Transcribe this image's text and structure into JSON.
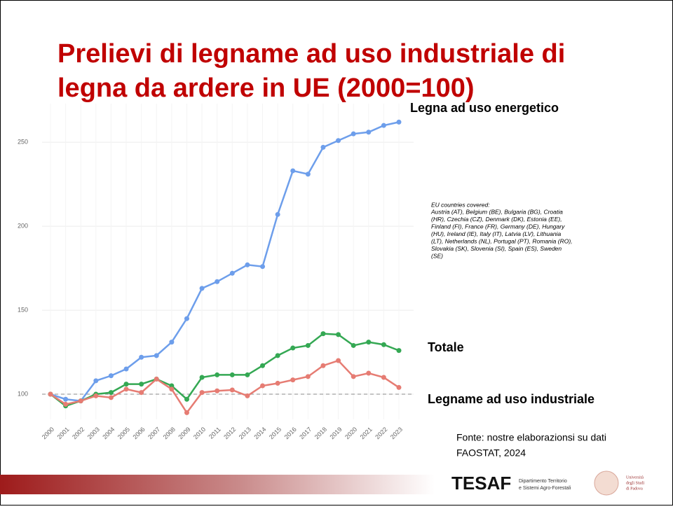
{
  "chart_data": {
    "type": "line",
    "title": [
      "Prelievi di legname ad uso industriale di",
      "legna da ardere in UE (2000=100)"
    ],
    "categories": [
      "2000",
      "2001",
      "2002",
      "2003",
      "2004",
      "2005",
      "2006",
      "2007",
      "2008",
      "2009",
      "2010",
      "2011",
      "2012",
      "2013",
      "2014",
      "2015",
      "2016",
      "2017",
      "2018",
      "2019",
      "2020",
      "2021",
      "2022",
      "2023"
    ],
    "series": [
      {
        "name": "Legna ad uso energetico",
        "color": "#6d9eeb",
        "values": [
          100,
          97,
          96,
          108,
          111,
          115,
          122,
          123,
          131,
          145,
          163,
          167,
          172,
          177,
          176,
          207,
          233,
          231,
          247,
          251,
          255,
          256,
          260,
          262
        ]
      },
      {
        "name": "Totale",
        "color": "#34a853",
        "values": [
          100,
          93,
          96,
          100,
          101,
          106,
          106,
          109,
          105,
          97,
          110,
          111.5,
          111.5,
          111.5,
          117,
          123,
          127.5,
          129,
          136,
          135.5,
          129,
          131,
          129.5,
          126
        ]
      },
      {
        "name": "Legname ad uso industriale",
        "color": "#e67c73",
        "values": [
          100,
          94,
          96,
          99,
          98,
          103,
          101,
          109,
          103,
          89,
          101,
          102,
          102.5,
          99,
          105,
          106.5,
          108.5,
          110.5,
          117,
          120,
          110.5,
          112.5,
          110,
          104
        ]
      }
    ],
    "ylim": [
      85,
      273
    ],
    "yticks": [
      100,
      150,
      200,
      250
    ],
    "grid": true,
    "reference_line": 100,
    "note_title": "EU countries covered:",
    "note_lines": [
      "Austria (AT), Belgium (BE), Bulgaria (BG), Croatia",
      "(HR), Czechia (CZ), Denmark (DK), Estonia (EE),",
      "Finland (FI), France (FR), Germany (DE), Hungary",
      "(HU), Ireland (IE), Italy (IT), Latvia (LV), Lithuania",
      "(LT), Netherlands (NL), Portugal (PT), Romania (RO),",
      "Slovakia (SK), Slovenia (SI), Spain (ES), Sweden",
      "(SE)"
    ],
    "source_lines": [
      "Fonte: nostre elaborazionsi su dati",
      "FAOSTAT, 2024"
    ],
    "footer": {
      "logo": "TESAF",
      "department": [
        "Dipartimento Territorio",
        "e Sistemi Agro-Forestali"
      ],
      "university": [
        "Università",
        "degli Studi",
        "di Padova"
      ]
    }
  }
}
